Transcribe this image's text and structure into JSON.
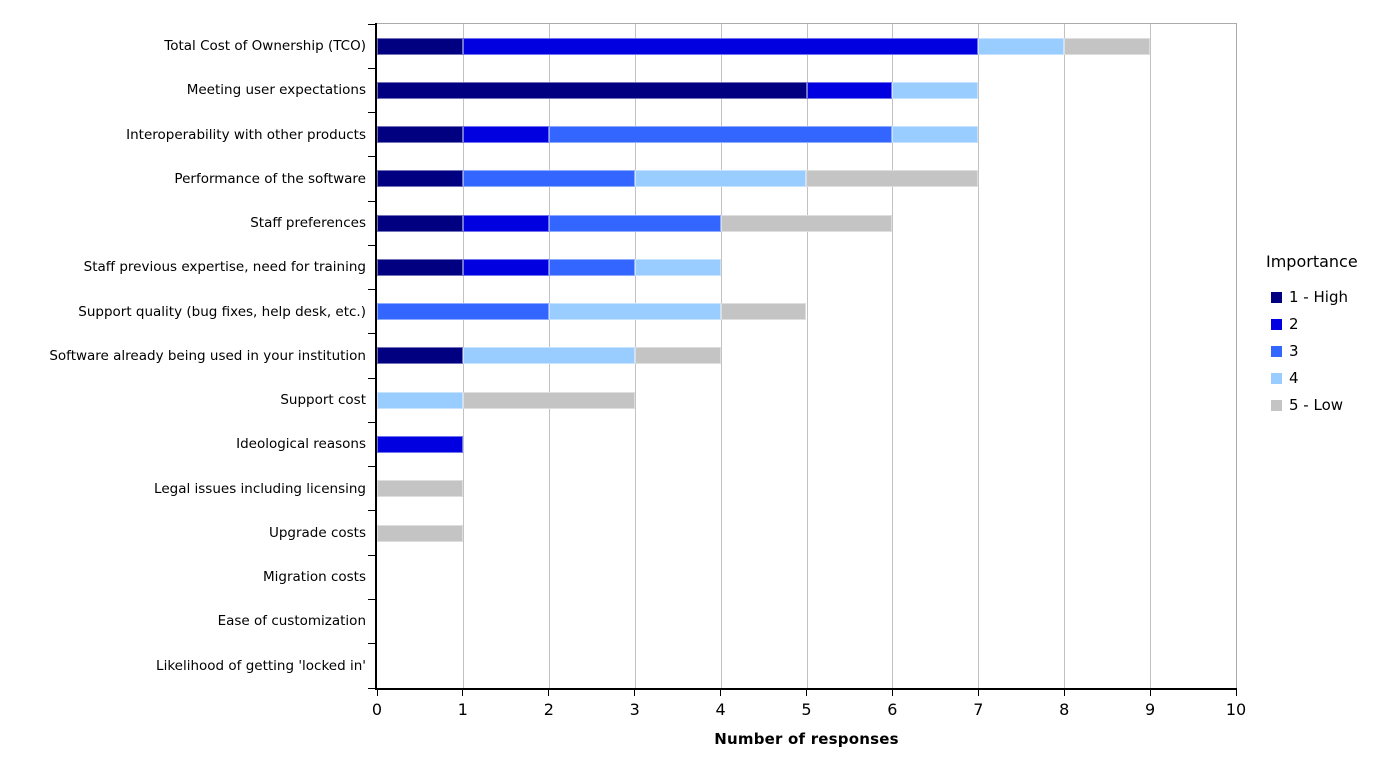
{
  "chart_data": {
    "type": "bar",
    "orientation": "horizontal",
    "stacked": true,
    "xlabel": "Number of responses",
    "ylabel": "",
    "xlim": [
      0,
      10
    ],
    "x_ticks": [
      0,
      1,
      2,
      3,
      4,
      5,
      6,
      7,
      8,
      9,
      10
    ],
    "grid": "vertical",
    "legend_title": "Importance",
    "legend_position": "right",
    "categories": [
      "Total Cost of Ownership (TCO)",
      "Meeting user expectations",
      "Interoperability with other products",
      "Performance of the software",
      "Staff preferences",
      "Staff previous expertise, need for training",
      "Support quality (bug fixes, help desk, etc.)",
      "Software already being used in your institution",
      "Support cost",
      "Ideological reasons",
      "Legal issues including licensing",
      "Upgrade costs",
      "Migration costs",
      "Ease of customization",
      "Likelihood of getting 'locked in'"
    ],
    "series": [
      {
        "name": "1 - High",
        "color": "#000080",
        "values": [
          1,
          5,
          1,
          1,
          1,
          1,
          0,
          1,
          0,
          0,
          0,
          0,
          0,
          0,
          0
        ]
      },
      {
        "name": "2",
        "color": "#0000e0",
        "values": [
          6,
          1,
          1,
          0,
          1,
          1,
          0,
          0,
          0,
          1,
          0,
          0,
          0,
          0,
          0
        ]
      },
      {
        "name": "3",
        "color": "#3366ff",
        "values": [
          0,
          0,
          4,
          2,
          2,
          1,
          2,
          0,
          0,
          0,
          0,
          0,
          0,
          0,
          0
        ]
      },
      {
        "name": "4",
        "color": "#99ccff",
        "values": [
          1,
          1,
          1,
          2,
          0,
          1,
          2,
          2,
          1,
          0,
          0,
          0,
          0,
          0,
          0
        ]
      },
      {
        "name": "5 - Low",
        "color": "#c4c4c4",
        "values": [
          1,
          0,
          0,
          2,
          2,
          0,
          1,
          1,
          2,
          0,
          1,
          1,
          0,
          0,
          0
        ]
      }
    ]
  },
  "colors": {
    "gridline": "#c2c2c2",
    "plot_border": "#ababab",
    "axis": "#000000"
  }
}
